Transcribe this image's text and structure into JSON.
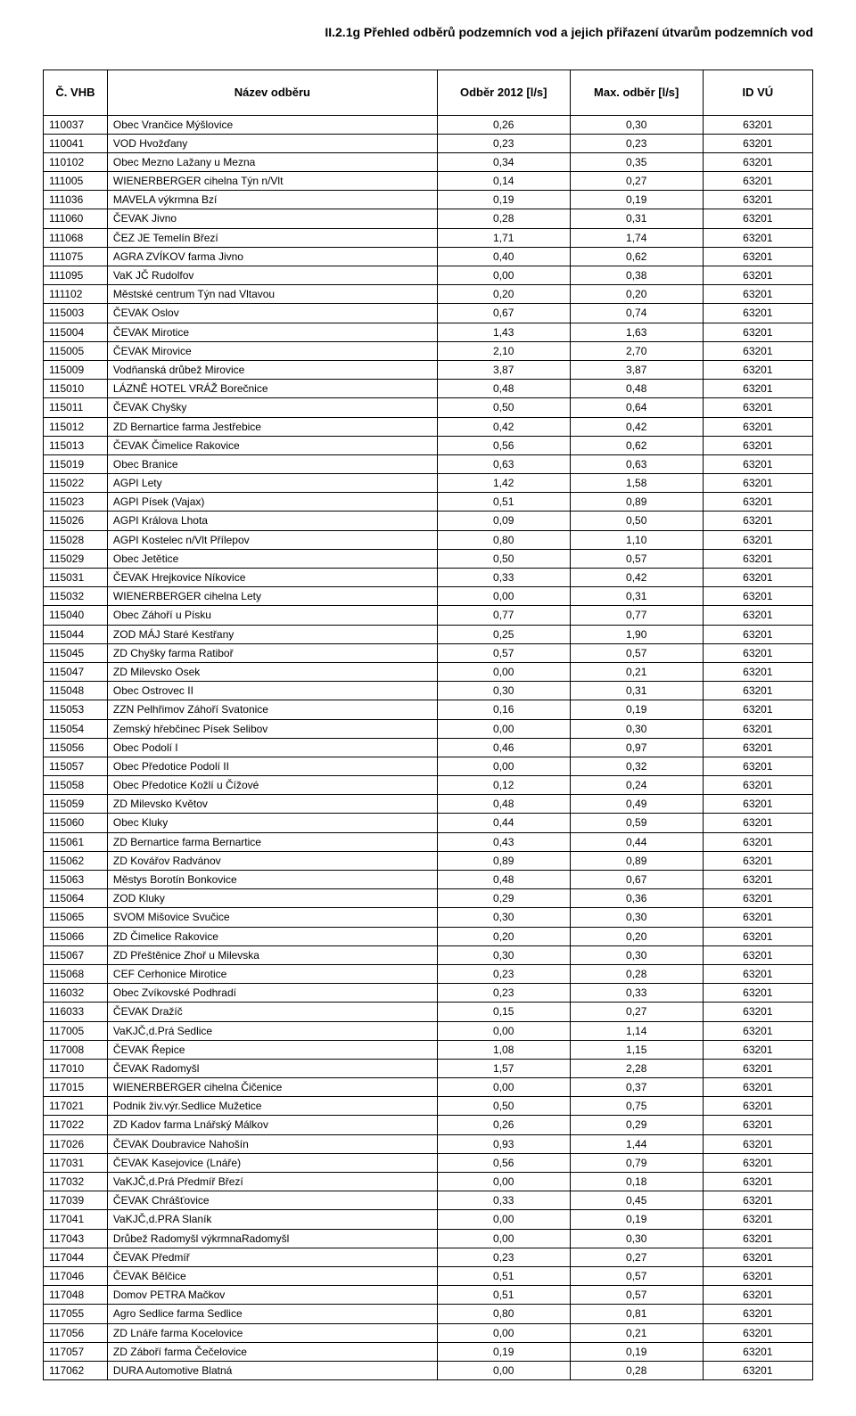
{
  "title": "II.2.1g  Přehled odběrů podzemních vod a jejich přiřazení útvarům podzemních vod",
  "columns": [
    "Č. VHB",
    "Název odběru",
    "Odběr 2012 [l/s]",
    "Max. odběr [l/s]",
    "ID VÚ"
  ],
  "rows": [
    [
      "110037",
      "Obec Vrančice Mýšlovice",
      "0,26",
      "0,30",
      "63201"
    ],
    [
      "110041",
      "VOD Hvožďany",
      "0,23",
      "0,23",
      "63201"
    ],
    [
      "110102",
      "Obec Mezno Lažany u Mezna",
      "0,34",
      "0,35",
      "63201"
    ],
    [
      "111005",
      "WIENERBERGER cihelna Týn n/Vlt",
      "0,14",
      "0,27",
      "63201"
    ],
    [
      "111036",
      "MAVELA výkrmna Bzí",
      "0,19",
      "0,19",
      "63201"
    ],
    [
      "111060",
      "ČEVAK Jivno",
      "0,28",
      "0,31",
      "63201"
    ],
    [
      "111068",
      "ČEZ JE Temelín Březí",
      "1,71",
      "1,74",
      "63201"
    ],
    [
      "111075",
      "AGRA ZVÍKOV farma Jivno",
      "0,40",
      "0,62",
      "63201"
    ],
    [
      "111095",
      "VaK JČ Rudolfov",
      "0,00",
      "0,38",
      "63201"
    ],
    [
      "111102",
      "Městské centrum Týn nad Vltavou",
      "0,20",
      "0,20",
      "63201"
    ],
    [
      "115003",
      "ČEVAK Oslov",
      "0,67",
      "0,74",
      "63201"
    ],
    [
      "115004",
      "ČEVAK Mirotice",
      "1,43",
      "1,63",
      "63201"
    ],
    [
      "115005",
      "ČEVAK Mirovice",
      "2,10",
      "2,70",
      "63201"
    ],
    [
      "115009",
      "Vodňanská drůbež Mirovice",
      "3,87",
      "3,87",
      "63201"
    ],
    [
      "115010",
      "LÁZNĚ HOTEL VRÁŽ Borečnice",
      "0,48",
      "0,48",
      "63201"
    ],
    [
      "115011",
      "ČEVAK Chyšky",
      "0,50",
      "0,64",
      "63201"
    ],
    [
      "115012",
      "ZD Bernartice farma Jestřebice",
      "0,42",
      "0,42",
      "63201"
    ],
    [
      "115013",
      "ČEVAK Čimelice Rakovice",
      "0,56",
      "0,62",
      "63201"
    ],
    [
      "115019",
      "Obec Branice",
      "0,63",
      "0,63",
      "63201"
    ],
    [
      "115022",
      "AGPI Lety",
      "1,42",
      "1,58",
      "63201"
    ],
    [
      "115023",
      "AGPI Písek (Vajax)",
      "0,51",
      "0,89",
      "63201"
    ],
    [
      "115026",
      "AGPI Králova Lhota",
      "0,09",
      "0,50",
      "63201"
    ],
    [
      "115028",
      "AGPI Kostelec n/Vlt Přílepov",
      "0,80",
      "1,10",
      "63201"
    ],
    [
      "115029",
      "Obec Jetětice",
      "0,50",
      "0,57",
      "63201"
    ],
    [
      "115031",
      "ČEVAK Hrejkovice Níkovice",
      "0,33",
      "0,42",
      "63201"
    ],
    [
      "115032",
      "WIENERBERGER cihelna Lety",
      "0,00",
      "0,31",
      "63201"
    ],
    [
      "115040",
      "Obec Záhoří u Písku",
      "0,77",
      "0,77",
      "63201"
    ],
    [
      "115044",
      "ZOD MÁJ Staré Kestřany",
      "0,25",
      "1,90",
      "63201"
    ],
    [
      "115045",
      "ZD Chyšky farma Ratiboř",
      "0,57",
      "0,57",
      "63201"
    ],
    [
      "115047",
      "ZD Milevsko Osek",
      "0,00",
      "0,21",
      "63201"
    ],
    [
      "115048",
      "Obec Ostrovec II",
      "0,30",
      "0,31",
      "63201"
    ],
    [
      "115053",
      "ZZN Pelhřimov Záhoří Svatonice",
      "0,16",
      "0,19",
      "63201"
    ],
    [
      "115054",
      "Zemský hřebčinec Písek Selibov",
      "0,00",
      "0,30",
      "63201"
    ],
    [
      "115056",
      "Obec Podolí I",
      "0,46",
      "0,97",
      "63201"
    ],
    [
      "115057",
      "Obec Předotice Podolí II",
      "0,00",
      "0,32",
      "63201"
    ],
    [
      "115058",
      "Obec Předotice Kožlí u Čížové",
      "0,12",
      "0,24",
      "63201"
    ],
    [
      "115059",
      "ZD Milevsko Květov",
      "0,48",
      "0,49",
      "63201"
    ],
    [
      "115060",
      "Obec Kluky",
      "0,44",
      "0,59",
      "63201"
    ],
    [
      "115061",
      "ZD Bernartice farma Bernartice",
      "0,43",
      "0,44",
      "63201"
    ],
    [
      "115062",
      "ZD Kovářov Radvánov",
      "0,89",
      "0,89",
      "63201"
    ],
    [
      "115063",
      "Městys Borotín Bonkovice",
      "0,48",
      "0,67",
      "63201"
    ],
    [
      "115064",
      "ZOD Kluky",
      "0,29",
      "0,36",
      "63201"
    ],
    [
      "115065",
      "SVOM Mišovice Svučice",
      "0,30",
      "0,30",
      "63201"
    ],
    [
      "115066",
      "ZD Čimelice Rakovice",
      "0,20",
      "0,20",
      "63201"
    ],
    [
      "115067",
      "ZD Přeštěnice Zhoř u Milevska",
      "0,30",
      "0,30",
      "63201"
    ],
    [
      "115068",
      "CEF Cerhonice Mirotice",
      "0,23",
      "0,28",
      "63201"
    ],
    [
      "116032",
      "Obec Zvíkovské Podhradí",
      "0,23",
      "0,33",
      "63201"
    ],
    [
      "116033",
      "ČEVAK Dražíč",
      "0,15",
      "0,27",
      "63201"
    ],
    [
      "117005",
      "VaKJČ,d.Prá Sedlice",
      "0,00",
      "1,14",
      "63201"
    ],
    [
      "117008",
      "ČEVAK Řepice",
      "1,08",
      "1,15",
      "63201"
    ],
    [
      "117010",
      "ČEVAK Radomyšl",
      "1,57",
      "2,28",
      "63201"
    ],
    [
      "117015",
      "WIENERBERGER cihelna Čičenice",
      "0,00",
      "0,37",
      "63201"
    ],
    [
      "117021",
      "Podnik živ.výr.Sedlice Mužetice",
      "0,50",
      "0,75",
      "63201"
    ],
    [
      "117022",
      "ZD Kadov farma Lnářský Málkov",
      "0,26",
      "0,29",
      "63201"
    ],
    [
      "117026",
      "ČEVAK Doubravice Nahošín",
      "0,93",
      "1,44",
      "63201"
    ],
    [
      "117031",
      "ČEVAK Kasejovice (Lnáře)",
      "0,56",
      "0,79",
      "63201"
    ],
    [
      "117032",
      "VaKJČ,d.Prá Předmíř Březí",
      "0,00",
      "0,18",
      "63201"
    ],
    [
      "117039",
      "ČEVAK Chrášťovice",
      "0,33",
      "0,45",
      "63201"
    ],
    [
      "117041",
      "VaKJČ,d.PRA Slaník",
      "0,00",
      "0,19",
      "63201"
    ],
    [
      "117043",
      "Drůbež Radomyšl výkrmnaRadomyšl",
      "0,00",
      "0,30",
      "63201"
    ],
    [
      "117044",
      "ČEVAK Předmíř",
      "0,23",
      "0,27",
      "63201"
    ],
    [
      "117046",
      "ČEVAK Bělčice",
      "0,51",
      "0,57",
      "63201"
    ],
    [
      "117048",
      "Domov PETRA Mačkov",
      "0,51",
      "0,57",
      "63201"
    ],
    [
      "117055",
      "Agro Sedlice farma Sedlice",
      "0,80",
      "0,81",
      "63201"
    ],
    [
      "117056",
      "ZD Lnáře farma Kocelovice",
      "0,00",
      "0,21",
      "63201"
    ],
    [
      "117057",
      "ZD Záboří farma Čečelovice",
      "0,19",
      "0,19",
      "63201"
    ],
    [
      "117062",
      "DURA Automotive Blatná",
      "0,00",
      "0,28",
      "63201"
    ]
  ]
}
